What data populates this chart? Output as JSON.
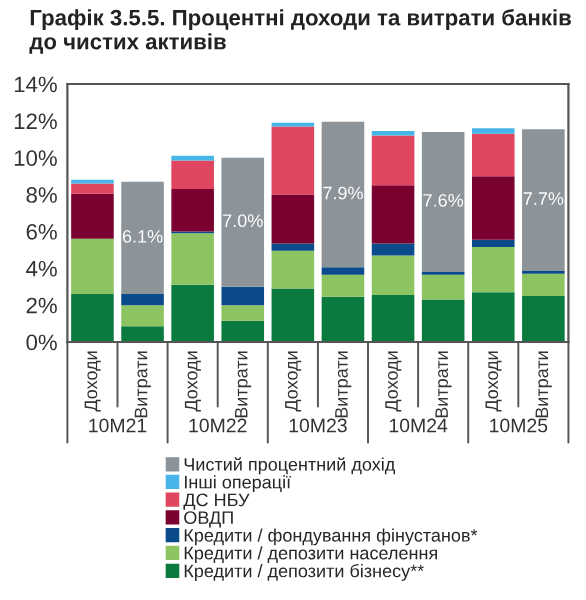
{
  "chart_data": {
    "type": "bar",
    "stacked": true,
    "title": "Графік 3.5.5. Процентні доходи та витрати банків до чистих активів",
    "categories": [
      "Доходи",
      "Витрати",
      "Доходи",
      "Витрати",
      "Доходи",
      "Витрати",
      "Доходи",
      "Витрати",
      "Доходи",
      "Витрати"
    ],
    "annotations": [
      "10M21",
      "10M22",
      "10M23",
      "10M24",
      "10M25"
    ],
    "series": [
      {
        "name": "Кредити / депозити бізнесу**",
        "color": "#0a7a3e",
        "values": [
          2.6,
          0.85,
          3.1,
          1.15,
          2.9,
          2.45,
          2.55,
          2.3,
          2.7,
          2.5
        ]
      },
      {
        "name": "Кредити / депозити населення",
        "color": "#8dc462",
        "values": [
          3.0,
          1.15,
          2.8,
          0.85,
          2.05,
          1.2,
          2.15,
          1.35,
          2.45,
          1.2
        ]
      },
      {
        "name": "Кредити / фондування фінустанов*",
        "color": "#0b4a8b",
        "values": [
          0,
          0.6,
          0.1,
          1.0,
          0.4,
          0.4,
          0.65,
          0.15,
          0.4,
          0.15
        ]
      },
      {
        "name": "ОВДП",
        "color": "#7a0030",
        "values": [
          2.45,
          0,
          2.3,
          0,
          2.65,
          0,
          3.15,
          0,
          3.45,
          0
        ]
      },
      {
        "name": "ДС НБУ",
        "color": "#e0465f",
        "values": [
          0.55,
          0,
          1.55,
          0,
          3.7,
          0,
          2.7,
          0,
          2.3,
          0
        ]
      },
      {
        "name": "Інші операції",
        "color": "#47b5e8",
        "values": [
          0.2,
          0,
          0.25,
          0,
          0.2,
          0,
          0.25,
          0,
          0.3,
          0
        ]
      },
      {
        "name": "Чистий процентний дохід",
        "color": "#8c9399",
        "values": [
          0,
          6.1,
          0,
          7.0,
          0,
          7.9,
          0,
          7.6,
          0,
          7.7
        ],
        "value_labels": [
          null,
          "6.1%",
          null,
          "7.0%",
          null,
          "7.9%",
          null,
          "7.6%",
          null,
          "7.7%"
        ]
      }
    ],
    "ylim": [
      0,
      14
    ],
    "yticks": [
      {
        "value": 0,
        "label": "0%"
      },
      {
        "value": 2,
        "label": "2%"
      },
      {
        "value": 4,
        "label": "4%"
      },
      {
        "value": 6,
        "label": "6%"
      },
      {
        "value": 8,
        "label": "8%"
      },
      {
        "value": 10,
        "label": "10%"
      },
      {
        "value": 12,
        "label": "12%"
      },
      {
        "value": 14,
        "label": "14%"
      }
    ],
    "grid": false,
    "legend": "bottom"
  }
}
